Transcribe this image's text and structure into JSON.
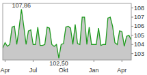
{
  "chart_data": {
    "type": "line",
    "categories": [
      null,
      "Apr",
      null,
      null,
      null,
      null,
      null,
      null,
      null,
      null,
      null,
      null,
      null,
      "Jul",
      null,
      null,
      null,
      null,
      null,
      null,
      null,
      null,
      null,
      null,
      null,
      null,
      "Okt",
      null,
      null,
      null,
      null,
      null,
      null,
      null,
      null,
      null,
      null,
      null,
      null,
      "Jan",
      null,
      null,
      null,
      null,
      null,
      null,
      null,
      null,
      null,
      null,
      null,
      "Apr",
      null,
      null,
      null,
      null
    ],
    "values": [
      103.6,
      104.2,
      103.8,
      104.0,
      105.9,
      106.0,
      104.0,
      105.8,
      107.86,
      106.0,
      104.0,
      105.5,
      105.6,
      104.0,
      104.0,
      105.9,
      103.9,
      103.9,
      104.0,
      105.9,
      105.8,
      104.0,
      103.8,
      104.0,
      102.5,
      104.0,
      104.1,
      105.9,
      106.0,
      105.8,
      104.0,
      106.2,
      104.1,
      104.0,
      107.0,
      107.0,
      104.0,
      105.9,
      104.0,
      104.0,
      104.0,
      105.8,
      103.9,
      104.0,
      104.0,
      106.9,
      107.0,
      106.0,
      104.2,
      104.0,
      105.5,
      105.4,
      103.8,
      104.9,
      105.0,
      104.5
    ],
    "color": "#1e9a1e",
    "ylim": [
      102.3,
      108.5
    ],
    "yticks": [
      103,
      104,
      105,
      106,
      107,
      108
    ],
    "grid": false,
    "annotations": [
      {
        "text": "107,86",
        "x": 8,
        "y": 107.86
      },
      {
        "text": "102,50",
        "x": 24,
        "y": 102.5
      }
    ]
  }
}
